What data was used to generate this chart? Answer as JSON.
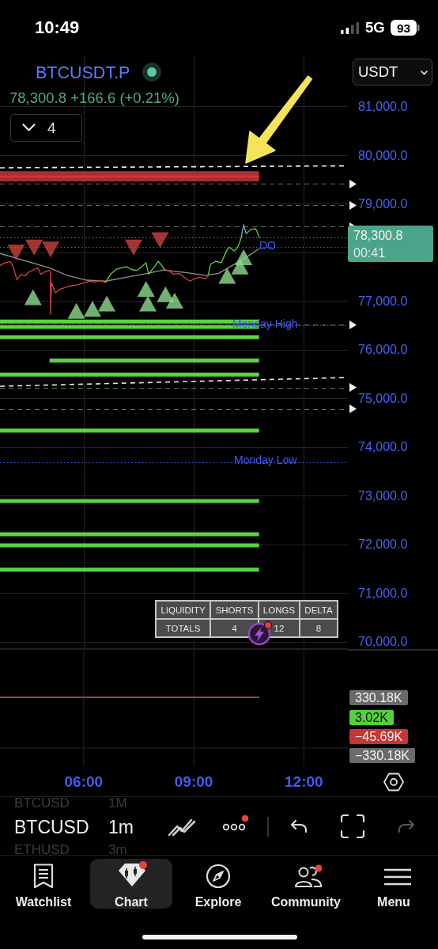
{
  "chart_data": {
    "type": "line",
    "title": "BTCUSDT.P",
    "subtitle": "78,300.8 +166.6 (+0.21%)",
    "xlim": [
      3.72,
      13.2
    ],
    "xticks": [
      {
        "value": 6,
        "label": "06:00"
      },
      {
        "value": 9,
        "label": "09:00"
      },
      {
        "value": 12,
        "label": "12:00"
      }
    ],
    "ylim": [
      69850,
      82050
    ],
    "yticks": [
      {
        "value": 70000,
        "label": "70,000.0"
      },
      {
        "value": 71000,
        "label": "71,000.0"
      },
      {
        "value": 72000,
        "label": "72,000.0"
      },
      {
        "value": 73000,
        "label": "73,000.0"
      },
      {
        "value": 74000,
        "label": "74,000.0"
      },
      {
        "value": 75000,
        "label": "75,000.0"
      },
      {
        "value": 76000,
        "label": "76,000.0"
      },
      {
        "value": 77000,
        "label": "77,000.0"
      },
      {
        "value": 78000,
        "label": null
      },
      {
        "value": 79000,
        "label": "79,000.0"
      },
      {
        "value": 80000,
        "label": "80,000.0"
      },
      {
        "value": 81000,
        "label": "81,000.0"
      }
    ],
    "grid": true,
    "series": [
      {
        "color": "#d0383a",
        "x": [
          3.72,
          10.78
        ],
        "values": [
          79560,
          79560
        ],
        "lower": [
          79460,
          79460
        ],
        "upper": [
          79670,
          79670
        ]
      },
      {
        "color": "#5bd23f",
        "x": [
          3.72,
          10.78
        ],
        "values": [
          76580,
          76580
        ]
      },
      {
        "color": "#5bd23f",
        "x": [
          3.72,
          10.78
        ],
        "values": [
          76470,
          76470
        ]
      },
      {
        "color": "#5bd23f",
        "x": [
          3.72,
          10.78
        ],
        "values": [
          76260,
          76260
        ]
      },
      {
        "color": "#5bd23f",
        "x": [
          5.07,
          10.78
        ],
        "values": [
          75780,
          75780
        ]
      },
      {
        "color": "#5bd23f",
        "x": [
          3.72,
          10.78
        ],
        "values": [
          75490,
          75490
        ]
      },
      {
        "color": "#5bd23f",
        "x": [
          3.72,
          10.78
        ],
        "values": [
          74340,
          74340
        ]
      },
      {
        "color": "#5bd23f",
        "x": [
          3.72,
          10.78
        ],
        "values": [
          72890,
          72890
        ]
      },
      {
        "color": "#5bd23f",
        "x": [
          3.72,
          10.78
        ],
        "values": [
          72210,
          72210
        ]
      },
      {
        "color": "#5bd23f",
        "x": [
          3.72,
          10.78
        ],
        "values": [
          71980,
          71980
        ]
      },
      {
        "color": "#5bd23f",
        "x": [
          3.72,
          10.78
        ],
        "values": [
          71480,
          71480
        ]
      },
      {
        "color": "#e8e8e8",
        "line_style": "dashed",
        "x": [
          3.72,
          13.2
        ],
        "values": [
          79740,
          79780
        ]
      },
      {
        "color": "#e8e8e8",
        "line_style": "dashed",
        "x": [
          3.72,
          13.2
        ],
        "values": [
          75250,
          75430
        ]
      },
      {
        "color": "#8f8f8f",
        "x": [
          3.72,
          5.08,
          5.58,
          6.09,
          6.59,
          7.16,
          7.74,
          8.17,
          8.74,
          9.32,
          9.68,
          10.04,
          10.47,
          10.79
        ],
        "values": [
          77980,
          77680,
          77520,
          77430,
          77410,
          77490,
          77570,
          77640,
          77590,
          77530,
          77570,
          77730,
          77920,
          78080
        ]
      },
      {
        "color": "#d4423b",
        "x": [
          3.72,
          3.86,
          4.0,
          4.08,
          4.18,
          4.29,
          4.4,
          4.51,
          4.65,
          4.76,
          4.83,
          4.94,
          5.05,
          5.09,
          5.1,
          5.12,
          5.23,
          5.37,
          5.58,
          5.8,
          6.02,
          6.16,
          6.3,
          6.45,
          6.59
        ],
        "values": [
          77730,
          77790,
          77810,
          77710,
          77440,
          77550,
          77520,
          77600,
          77650,
          77680,
          77550,
          77600,
          77630,
          77610,
          76730,
          77380,
          77170,
          77250,
          77300,
          77330,
          77380,
          77410,
          77390,
          77430,
          77380
        ]
      },
      {
        "color": "#62d13e",
        "x": [
          6.59,
          6.73,
          6.88,
          7.02,
          7.16,
          7.31,
          7.45,
          7.59,
          7.7,
          7.77,
          7.85,
          7.95,
          8.03,
          8.1,
          8.2
        ],
        "values": [
          77380,
          77550,
          77650,
          77680,
          77710,
          77650,
          77630,
          77710,
          77790,
          77550,
          77630,
          77730,
          77820,
          77760,
          77650
        ]
      },
      {
        "color": "#d4423b",
        "x": [
          8.2,
          8.31,
          8.46,
          8.6,
          8.74,
          8.89,
          9.03,
          9.17,
          9.32,
          9.39
        ],
        "values": [
          77650,
          77630,
          77550,
          77570,
          77490,
          77410,
          77460,
          77490,
          77460,
          77520
        ]
      },
      {
        "color": "#62d13e",
        "x": [
          9.39,
          9.46,
          9.6,
          9.75,
          9.89,
          9.96,
          10.11,
          10.18,
          10.25,
          10.29
        ],
        "values": [
          77520,
          77760,
          77820,
          77790,
          78030,
          78110,
          78030,
          78090,
          78200,
          78300
        ]
      },
      {
        "color": "#5ec8e5",
        "x": [
          10.29,
          10.36,
          10.43
        ],
        "values": [
          78300,
          78570,
          78380
        ]
      },
      {
        "color": "#62d13e",
        "x": [
          10.43,
          10.54,
          10.68,
          10.72,
          10.79
        ],
        "values": [
          78380,
          78470,
          78490,
          78440,
          78300
        ]
      },
      {
        "type": "scatter",
        "marker": "triangle-down",
        "color": "#c8443e",
        "x": [
          4.16,
          4.65,
          5.1,
          7.36,
          8.08
        ],
        "values": [
          78000,
          78100,
          78060,
          78100,
          78250
        ]
      },
      {
        "type": "scatter",
        "marker": "triangle",
        "color": "#8fdc8f",
        "x": [
          4.62,
          5.8,
          6.24,
          6.63,
          7.7,
          7.75,
          8.23,
          8.48,
          9.91,
          10.26,
          10.36
        ],
        "values": [
          77080,
          76800,
          76840,
          76950,
          77250,
          76950,
          77140,
          77010,
          77520,
          77710,
          77900
        ]
      }
    ],
    "ref_lines": [
      {
        "axis": "y",
        "value": 79410,
        "color": "#6b6b6b",
        "line_style": "dashed"
      },
      {
        "axis": "y",
        "value": 78970,
        "color": "#6b6b6b",
        "line_style": "dashed"
      },
      {
        "axis": "y",
        "value": 78530,
        "color": "#6b6b6b",
        "line_style": "dashed"
      },
      {
        "axis": "y",
        "value": 76510,
        "color": "#6b6b6b",
        "line_style": "dashed"
      },
      {
        "axis": "y",
        "value": 75220,
        "color": "#6b6b6b",
        "line_style": "dashed"
      },
      {
        "axis": "y",
        "value": 74780,
        "color": "#6b6b6b",
        "line_style": "dashed"
      },
      {
        "axis": "y",
        "value": 78110,
        "label": "DO",
        "color": "#3d5afe",
        "line_style": "dotted"
      },
      {
        "axis": "y",
        "value": 76500,
        "label": "Monday High",
        "color": "#3d5afe",
        "line_style": "dotted"
      },
      {
        "axis": "y",
        "value": 73690,
        "label": "Monday Low",
        "color": "#3d5afe",
        "line_style": "dotted"
      },
      {
        "axis": "y",
        "value": 78300.8,
        "label": "78,300.8",
        "color": "#4aa489",
        "line_style": "dotted"
      }
    ],
    "annotations": [
      "10:49",
      "5G",
      "93",
      "4",
      "USDT",
      "00:41",
      "LIQUIDITY",
      "SHORTS",
      "LONGS",
      "DELTA",
      "TOTALS",
      "4",
      "12",
      "8",
      "330.18K",
      "3.02K",
      "−45.69K",
      "−330.18K",
      "BTCUSD",
      "1M",
      "BTCUSD",
      "1m",
      "ETHUSD",
      "3m",
      "Watchlist",
      "Chart",
      "Explore",
      "Community",
      "Menu"
    ]
  }
}
